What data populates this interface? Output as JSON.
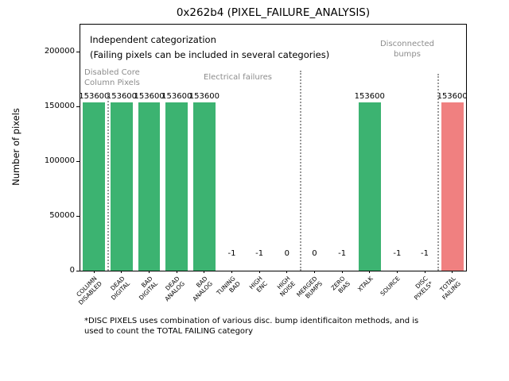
{
  "chart_data": {
    "type": "bar",
    "title": "0x262b4 (PIXEL_FAILURE_ANALYSIS)",
    "ylabel": "Number of pixels",
    "xlabel": "",
    "ylim": [
      0,
      225000
    ],
    "yticks": [
      0,
      50000,
      100000,
      150000,
      200000
    ],
    "grid": false,
    "legend": "none",
    "categories": [
      "COLUMN\nDISABLED",
      "DEAD\nDIGITAL",
      "BAD\nDIGITAL",
      "DEAD\nANALOG",
      "BAD\nANALOG",
      "TUNING\nBAD",
      "HIGH\nENC",
      "HIGH\nNOISE",
      "MERGED\nBUMPS",
      "ZERO\nBIAS",
      "XTALK",
      "SOURCE",
      "DISC\nPIXELS*",
      "TOTAL\nFAILING"
    ],
    "values": [
      153600,
      153600,
      153600,
      153600,
      153600,
      -1,
      -1,
      0,
      0,
      -1,
      153600,
      -1,
      -1,
      153600
    ],
    "bar_colors": [
      "#3cb371",
      "#3cb371",
      "#3cb371",
      "#3cb371",
      "#3cb371",
      null,
      null,
      null,
      null,
      null,
      "#3cb371",
      null,
      null,
      "#f08080"
    ],
    "section_dividers_after_index": [
      0,
      7,
      12
    ],
    "note": {
      "line1": "Independent categorization",
      "line2": "(Failing pixels can be included in several categories)"
    },
    "sections": [
      {
        "label": "Disabled Core\nColumn Pixels"
      },
      {
        "label": "Electrical failures"
      },
      {
        "label": "Disconnected\nbumps"
      }
    ],
    "footnote": "*DISC PIXELS uses combination of various disc. bump identificaiton methods, and is\nused to count the TOTAL FAILING category",
    "colors": {
      "bar_green": "#3cb371",
      "bar_red": "#f08080",
      "annotation_gray": "#8c8c8c"
    }
  }
}
